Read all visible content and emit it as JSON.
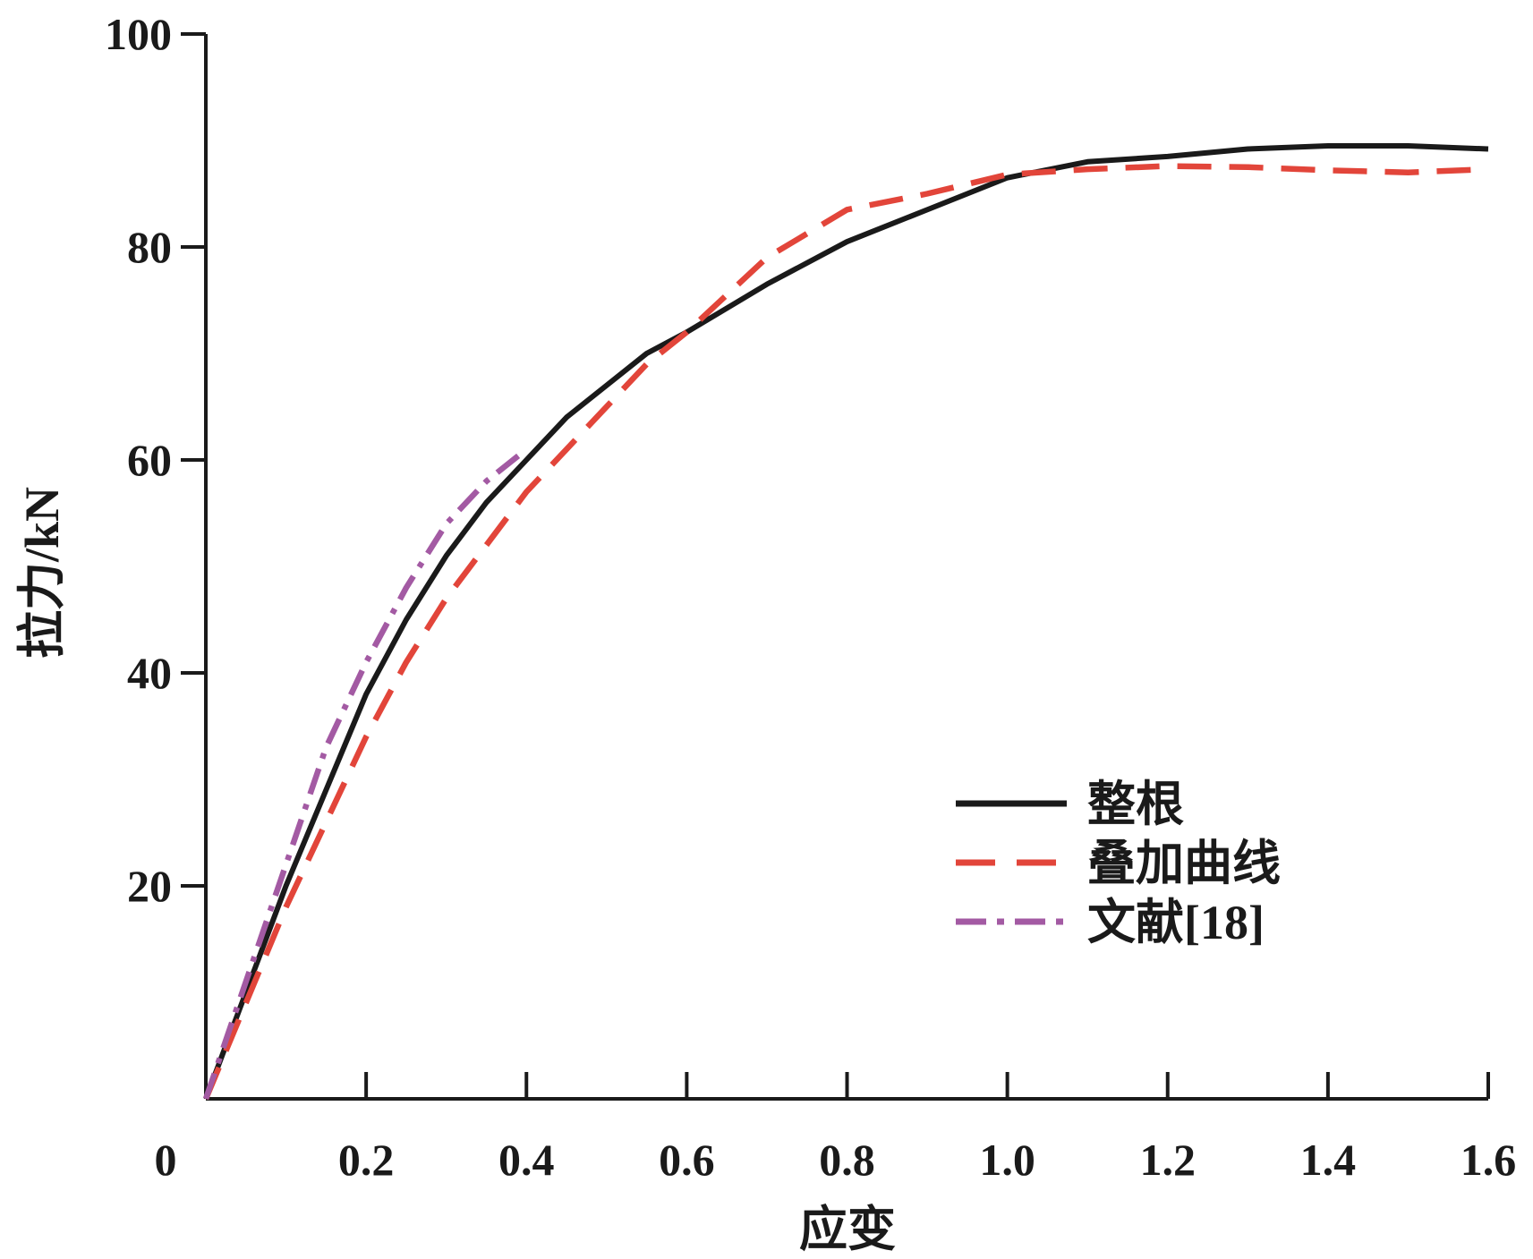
{
  "chart_data": {
    "type": "line",
    "xlabel": "应变",
    "ylabel": "拉力/kN",
    "xlim": [
      0,
      1.6
    ],
    "ylim": [
      0,
      100
    ],
    "x_ticks": [
      {
        "value": 0,
        "label": "0"
      },
      {
        "value": 0.2,
        "label": "0.2"
      },
      {
        "value": 0.4,
        "label": "0.4"
      },
      {
        "value": 0.6,
        "label": "0.6"
      },
      {
        "value": 0.8,
        "label": "0.8"
      },
      {
        "value": 1.0,
        "label": "1.0"
      },
      {
        "value": 1.2,
        "label": "1.2"
      },
      {
        "value": 1.4,
        "label": "1.4"
      },
      {
        "value": 1.6,
        "label": "1.6"
      }
    ],
    "y_ticks": [
      {
        "value": 20,
        "label": "20"
      },
      {
        "value": 40,
        "label": "40"
      },
      {
        "value": 60,
        "label": "60"
      },
      {
        "value": 80,
        "label": "80"
      },
      {
        "value": 100,
        "label": "100"
      }
    ],
    "grid": false,
    "legend_position": "bottom-right",
    "series": [
      {
        "name": "整根",
        "color": "#1a1a1a",
        "style": "solid",
        "x": [
          0,
          0.05,
          0.1,
          0.15,
          0.2,
          0.25,
          0.3,
          0.35,
          0.4,
          0.45,
          0.5,
          0.55,
          0.6,
          0.7,
          0.8,
          0.9,
          1.0,
          1.1,
          1.2,
          1.3,
          1.4,
          1.5,
          1.6
        ],
        "y": [
          0,
          10,
          20,
          29,
          38,
          45,
          51,
          56,
          60,
          64,
          67,
          70,
          72,
          76.5,
          80.5,
          83.5,
          86.5,
          88,
          88.5,
          89.2,
          89.5,
          89.5,
          89.2
        ]
      },
      {
        "name": "叠加曲线",
        "color": "#e2453a",
        "style": "dashed",
        "x": [
          0,
          0.05,
          0.1,
          0.15,
          0.2,
          0.25,
          0.3,
          0.35,
          0.4,
          0.45,
          0.5,
          0.55,
          0.6,
          0.7,
          0.8,
          0.9,
          1.0,
          1.1,
          1.2,
          1.3,
          1.4,
          1.5,
          1.6
        ],
        "y": [
          0,
          9,
          18,
          26,
          34,
          41,
          47,
          52,
          57,
          61,
          65,
          69,
          72,
          79,
          83.5,
          85,
          86.8,
          87.3,
          87.6,
          87.5,
          87.2,
          87,
          87.3
        ]
      },
      {
        "name": "文献[18]",
        "color": "#a35aa3",
        "style": "dashdot",
        "x": [
          0,
          0.05,
          0.1,
          0.15,
          0.2,
          0.25,
          0.3,
          0.35,
          0.4
        ],
        "y": [
          0,
          11,
          22,
          33,
          41,
          48,
          54,
          58,
          61
        ]
      }
    ]
  }
}
